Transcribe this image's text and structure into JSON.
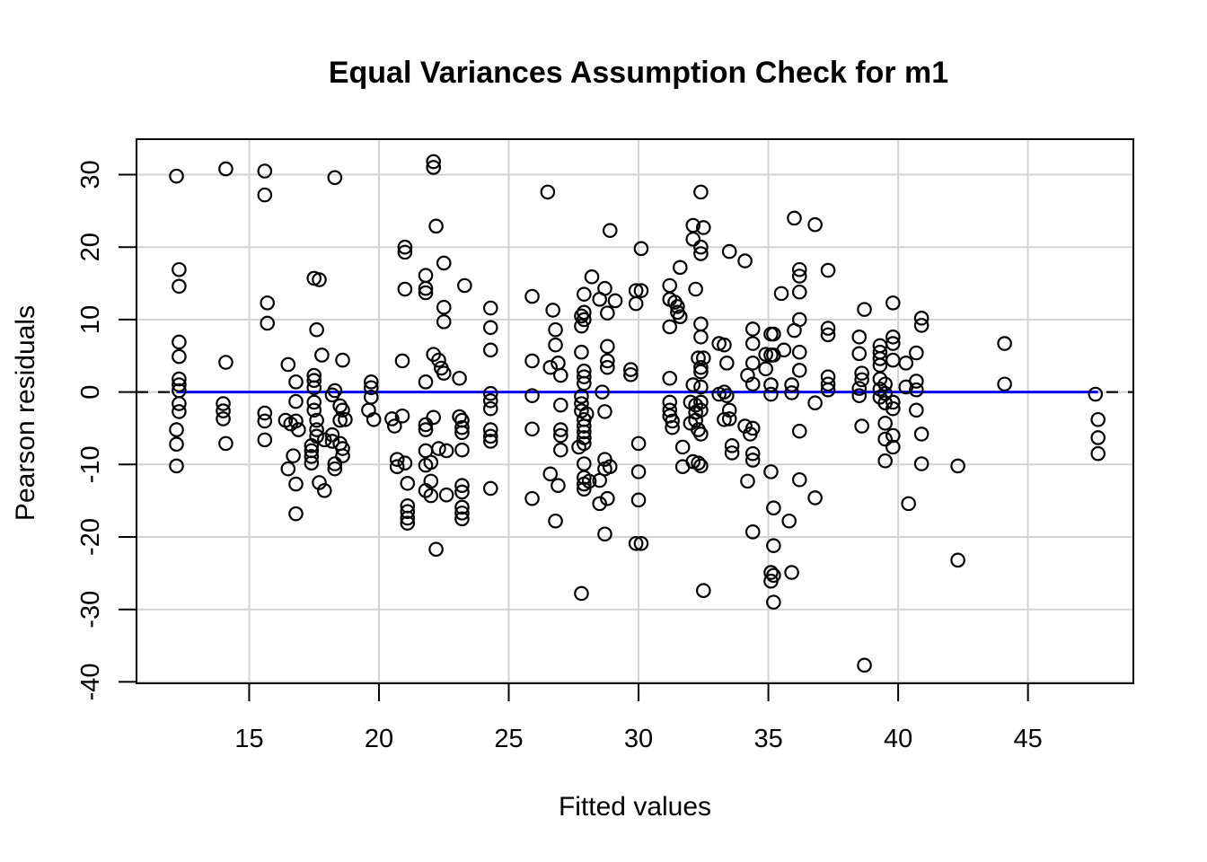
{
  "chart_data": {
    "type": "scatter",
    "title": "Equal Variances Assumption Check for m1",
    "xlabel": "Fitted values",
    "ylabel": "Pearson residuals",
    "x_ticks": [
      15,
      20,
      25,
      30,
      35,
      40,
      45
    ],
    "y_ticks": [
      30,
      20,
      10,
      0,
      -10,
      -20,
      -30,
      -40
    ],
    "xlim": [
      10.66,
      49.06
    ],
    "ylim": [
      -40.2,
      34.9
    ],
    "grid": true,
    "legend": "none",
    "marker": "open-circle",
    "colors": {
      "points": "#000000",
      "smooth_line": "#0000FF",
      "zero_line": "#000000",
      "gridline": "#D3D3D3",
      "axis": "#000000"
    },
    "smooth_line": {
      "y": 0,
      "x_start": 12.2,
      "x_end": 47.7,
      "style": "solid"
    },
    "zero_line": {
      "y": 0,
      "style": "dashed",
      "x_start": 10.66,
      "x_end": 49.06
    },
    "points": [
      [
        12.2,
        29.8
      ],
      [
        14.1,
        30.8
      ],
      [
        15.6,
        30.5
      ],
      [
        15.6,
        27.2
      ],
      [
        18.3,
        29.6
      ],
      [
        12.3,
        16.9
      ],
      [
        12.3,
        14.6
      ],
      [
        17.5,
        15.7
      ],
      [
        17.7,
        15.5
      ],
      [
        15.7,
        12.3
      ],
      [
        15.7,
        9.5
      ],
      [
        17.6,
        8.6
      ],
      [
        12.3,
        6.9
      ],
      [
        12.3,
        4.9
      ],
      [
        14.1,
        4.1
      ],
      [
        17.8,
        5.1
      ],
      [
        18.6,
        4.4
      ],
      [
        16.5,
        3.8
      ],
      [
        12.3,
        1.8
      ],
      [
        12.3,
        1.0
      ],
      [
        12.3,
        0.2
      ],
      [
        16.8,
        1.4
      ],
      [
        16.8,
        -1.3
      ],
      [
        17.5,
        2.3
      ],
      [
        17.5,
        1.6
      ],
      [
        17.5,
        0.6
      ],
      [
        18.3,
        0.2
      ],
      [
        19.7,
        1.4
      ],
      [
        19.7,
        0.6
      ],
      [
        19.7,
        -0.7
      ],
      [
        12.3,
        -1.6
      ],
      [
        12.3,
        -2.7
      ],
      [
        14.0,
        -1.6
      ],
      [
        14.0,
        -2.6
      ],
      [
        14.0,
        -3.7
      ],
      [
        17.5,
        -1.4
      ],
      [
        17.5,
        -2.5
      ],
      [
        18.2,
        -0.4
      ],
      [
        18.5,
        -1.9
      ],
      [
        18.6,
        -2.5
      ],
      [
        15.6,
        -2.9
      ],
      [
        19.6,
        -2.5
      ],
      [
        22.1,
        31.8
      ],
      [
        22.1,
        31.0
      ],
      [
        26.5,
        27.6
      ],
      [
        32.4,
        27.6
      ],
      [
        22.2,
        22.9
      ],
      [
        28.9,
        22.3
      ],
      [
        32.1,
        23.0
      ],
      [
        32.5,
        22.7
      ],
      [
        32.1,
        21.1
      ],
      [
        21.0,
        20.0
      ],
      [
        21.0,
        19.3
      ],
      [
        30.1,
        19.8
      ],
      [
        32.4,
        20.0
      ],
      [
        32.4,
        19.1
      ],
      [
        33.5,
        19.4
      ],
      [
        22.5,
        17.8
      ],
      [
        21.8,
        16.1
      ],
      [
        21.8,
        14.3
      ],
      [
        21.8,
        13.7
      ],
      [
        21.0,
        14.2
      ],
      [
        23.3,
        14.7
      ],
      [
        31.6,
        17.2
      ],
      [
        28.2,
        15.9
      ],
      [
        31.2,
        14.7
      ],
      [
        31.2,
        12.8
      ],
      [
        32.2,
        14.2
      ],
      [
        28.7,
        14.3
      ],
      [
        28.5,
        12.8
      ],
      [
        29.1,
        12.6
      ],
      [
        28.8,
        10.9
      ],
      [
        29.9,
        14.0
      ],
      [
        30.1,
        14.0
      ],
      [
        29.9,
        12.2
      ],
      [
        25.9,
        13.2
      ],
      [
        27.9,
        13.5
      ],
      [
        26.7,
        11.3
      ],
      [
        27.8,
        10.5
      ],
      [
        27.9,
        11.0
      ],
      [
        31.4,
        12.4
      ],
      [
        31.5,
        11.8
      ],
      [
        31.5,
        11.0
      ],
      [
        31.6,
        10.4
      ],
      [
        24.3,
        11.6
      ],
      [
        24.3,
        8.9
      ],
      [
        24.3,
        5.8
      ],
      [
        22.5,
        11.7
      ],
      [
        22.5,
        9.7
      ],
      [
        27.9,
        10.0
      ],
      [
        27.8,
        9.1
      ],
      [
        32.4,
        9.4
      ],
      [
        32.4,
        7.6
      ],
      [
        31.2,
        9.0
      ],
      [
        26.8,
        8.6
      ],
      [
        26.8,
        6.5
      ],
      [
        33.1,
        6.7
      ],
      [
        33.3,
        6.5
      ],
      [
        27.8,
        5.5
      ],
      [
        28.8,
        6.3
      ],
      [
        28.8,
        4.3
      ],
      [
        28.8,
        3.4
      ],
      [
        20.9,
        4.3
      ],
      [
        22.1,
        5.2
      ],
      [
        22.3,
        4.4
      ],
      [
        22.4,
        3.3
      ],
      [
        22.5,
        2.6
      ],
      [
        21.8,
        1.4
      ],
      [
        23.1,
        1.9
      ],
      [
        25.9,
        4.3
      ],
      [
        26.6,
        3.4
      ],
      [
        26.9,
        4.0
      ],
      [
        27.0,
        2.3
      ],
      [
        27.9,
        2.9
      ],
      [
        27.9,
        2.1
      ],
      [
        27.9,
        1.2
      ],
      [
        29.7,
        3.1
      ],
      [
        29.7,
        2.4
      ],
      [
        31.2,
        1.9
      ],
      [
        32.3,
        4.7
      ],
      [
        32.5,
        4.7
      ],
      [
        32.4,
        3.4
      ],
      [
        32.4,
        2.8
      ],
      [
        33.4,
        4.0
      ],
      [
        32.1,
        1.0
      ],
      [
        32.4,
        0.7
      ],
      [
        33.3,
        0.0
      ],
      [
        24.3,
        -0.2
      ],
      [
        24.3,
        -1.2
      ],
      [
        24.3,
        -2.3
      ],
      [
        25.9,
        -0.5
      ],
      [
        27.0,
        -1.8
      ],
      [
        27.8,
        -0.6
      ],
      [
        27.8,
        -1.6
      ],
      [
        27.8,
        -2.6
      ],
      [
        28.0,
        -3.0
      ],
      [
        28.7,
        -2.7
      ],
      [
        28.6,
        0.0
      ],
      [
        31.2,
        -1.4
      ],
      [
        31.2,
        -2.5
      ],
      [
        31.2,
        -3.3
      ],
      [
        32.0,
        -1.4
      ],
      [
        32.2,
        -1.8
      ],
      [
        32.4,
        -1.4
      ],
      [
        32.2,
        -2.8
      ],
      [
        32.4,
        -2.5
      ],
      [
        33.1,
        -0.3
      ],
      [
        33.4,
        -0.5
      ],
      [
        20.9,
        -3.3
      ],
      [
        22.1,
        -3.5
      ],
      [
        23.1,
        -3.4
      ],
      [
        36.0,
        24.0
      ],
      [
        36.8,
        23.1
      ],
      [
        34.1,
        18.1
      ],
      [
        36.2,
        16.9
      ],
      [
        36.2,
        16.0
      ],
      [
        37.3,
        16.8
      ],
      [
        35.5,
        13.6
      ],
      [
        36.2,
        13.8
      ],
      [
        36.2,
        10.0
      ],
      [
        36.2,
        5.5
      ],
      [
        36.2,
        3.0
      ],
      [
        36.0,
        8.5
      ],
      [
        38.7,
        11.4
      ],
      [
        39.8,
        12.3
      ],
      [
        40.9,
        10.2
      ],
      [
        40.9,
        9.2
      ],
      [
        34.4,
        8.7
      ],
      [
        34.4,
        6.7
      ],
      [
        35.1,
        8.0
      ],
      [
        35.2,
        8.0
      ],
      [
        37.3,
        8.8
      ],
      [
        37.3,
        7.9
      ],
      [
        34.9,
        5.2
      ],
      [
        35.1,
        5.1
      ],
      [
        35.2,
        5.1
      ],
      [
        35.6,
        5.8
      ],
      [
        34.4,
        4.0
      ],
      [
        34.9,
        3.2
      ],
      [
        38.5,
        7.6
      ],
      [
        38.5,
        5.3
      ],
      [
        39.3,
        6.4
      ],
      [
        39.3,
        5.5
      ],
      [
        39.3,
        4.6
      ],
      [
        39.3,
        3.7
      ],
      [
        39.8,
        7.6
      ],
      [
        39.8,
        6.7
      ],
      [
        39.8,
        4.4
      ],
      [
        40.3,
        4.0
      ],
      [
        40.7,
        5.4
      ],
      [
        44.1,
        6.7
      ],
      [
        38.6,
        2.6
      ],
      [
        38.6,
        1.7
      ],
      [
        37.3,
        2.1
      ],
      [
        37.3,
        1.1
      ],
      [
        37.3,
        0.3
      ],
      [
        34.2,
        2.3
      ],
      [
        34.4,
        1.1
      ],
      [
        35.1,
        1.0
      ],
      [
        35.1,
        -0.3
      ],
      [
        35.9,
        1.0
      ],
      [
        35.9,
        -0.1
      ],
      [
        36.8,
        -1.5
      ],
      [
        38.5,
        0.5
      ],
      [
        38.5,
        -0.5
      ],
      [
        39.3,
        1.8
      ],
      [
        39.5,
        1.1
      ],
      [
        39.3,
        0.4
      ],
      [
        39.5,
        -0.2
      ],
      [
        39.3,
        -0.7
      ],
      [
        39.5,
        -1.5
      ],
      [
        40.3,
        0.7
      ],
      [
        40.7,
        1.5
      ],
      [
        40.7,
        0.3
      ],
      [
        44.1,
        1.1
      ],
      [
        47.6,
        -0.3
      ],
      [
        33.5,
        -2.5
      ],
      [
        39.8,
        -1.4
      ],
      [
        39.8,
        -2.3
      ],
      [
        40.7,
        -2.5
      ],
      [
        12.2,
        -5.2
      ],
      [
        12.2,
        -7.2
      ],
      [
        12.2,
        -10.2
      ],
      [
        14.1,
        -7.1
      ],
      [
        15.6,
        -4.0
      ],
      [
        15.6,
        -6.6
      ],
      [
        16.4,
        -3.9
      ],
      [
        16.6,
        -4.4
      ],
      [
        16.8,
        -4.0
      ],
      [
        16.9,
        -5.2
      ],
      [
        16.7,
        -8.8
      ],
      [
        16.5,
        -10.6
      ],
      [
        16.8,
        -12.7
      ],
      [
        16.8,
        -16.8
      ],
      [
        17.4,
        -7.4
      ],
      [
        17.4,
        -8.1
      ],
      [
        17.4,
        -8.9
      ],
      [
        17.4,
        -9.8
      ],
      [
        17.6,
        -3.9
      ],
      [
        17.6,
        -5.2
      ],
      [
        17.6,
        -6.1
      ],
      [
        17.9,
        -6.6
      ],
      [
        18.2,
        -6.8
      ],
      [
        17.7,
        -12.5
      ],
      [
        17.9,
        -13.6
      ],
      [
        18.2,
        -5.9
      ],
      [
        18.5,
        -7.1
      ],
      [
        18.5,
        -3.9
      ],
      [
        18.7,
        -3.8
      ],
      [
        18.6,
        -7.8
      ],
      [
        18.6,
        -8.8
      ],
      [
        18.3,
        -9.9
      ],
      [
        18.3,
        -10.6
      ],
      [
        19.8,
        -3.8
      ],
      [
        20.6,
        -4.7
      ],
      [
        20.5,
        -3.7
      ],
      [
        20.7,
        -9.3
      ],
      [
        21.0,
        -9.8
      ],
      [
        20.7,
        -10.3
      ],
      [
        21.1,
        -12.6
      ],
      [
        21.1,
        -15.7
      ],
      [
        21.1,
        -16.5
      ],
      [
        21.1,
        -17.4
      ],
      [
        21.1,
        -18.1
      ],
      [
        21.8,
        -8.1
      ],
      [
        21.8,
        -10.1
      ],
      [
        22.0,
        -9.7
      ],
      [
        21.8,
        -13.6
      ],
      [
        22.0,
        -14.3
      ],
      [
        21.8,
        -4.5
      ],
      [
        21.8,
        -5.2
      ],
      [
        23.2,
        -3.9
      ],
      [
        23.2,
        -4.9
      ],
      [
        23.2,
        -5.6
      ],
      [
        22.3,
        -7.8
      ],
      [
        22.6,
        -8.1
      ],
      [
        23.2,
        -8.0
      ],
      [
        22.0,
        -12.3
      ],
      [
        23.2,
        -12.9
      ],
      [
        23.2,
        -13.8
      ],
      [
        22.6,
        -14.2
      ],
      [
        23.2,
        -15.9
      ],
      [
        23.2,
        -16.7
      ],
      [
        23.2,
        -17.5
      ],
      [
        22.2,
        -21.7
      ],
      [
        24.3,
        -5.2
      ],
      [
        24.3,
        -6.1
      ],
      [
        24.3,
        -6.8
      ],
      [
        25.9,
        -5.1
      ],
      [
        27.0,
        -5.2
      ],
      [
        27.0,
        -6.0
      ],
      [
        27.0,
        -8.0
      ],
      [
        27.9,
        -3.8
      ],
      [
        27.9,
        -4.7
      ],
      [
        27.9,
        -5.5
      ],
      [
        27.9,
        -6.3
      ],
      [
        27.9,
        -7.1
      ],
      [
        27.7,
        -7.6
      ],
      [
        28.7,
        -9.3
      ],
      [
        28.9,
        -10.3
      ],
      [
        28.7,
        -10.6
      ],
      [
        28.5,
        -12.2
      ],
      [
        27.9,
        -9.9
      ],
      [
        27.9,
        -11.8
      ],
      [
        27.9,
        -12.7
      ],
      [
        27.9,
        -13.4
      ],
      [
        28.1,
        -12.3
      ],
      [
        26.6,
        -11.3
      ],
      [
        26.9,
        -12.9
      ],
      [
        25.9,
        -14.7
      ],
      [
        26.8,
        -17.8
      ],
      [
        24.3,
        -13.3
      ],
      [
        28.5,
        -15.4
      ],
      [
        28.8,
        -14.7
      ],
      [
        28.7,
        -19.6
      ],
      [
        30.0,
        -7.1
      ],
      [
        30.0,
        -11.0
      ],
      [
        30.0,
        -14.9
      ],
      [
        29.9,
        -20.9
      ],
      [
        30.1,
        -20.9
      ],
      [
        31.3,
        -4.0
      ],
      [
        31.3,
        -4.9
      ],
      [
        31.7,
        -7.6
      ],
      [
        32.0,
        -4.3
      ],
      [
        32.2,
        -3.9
      ],
      [
        32.3,
        -5.2
      ],
      [
        32.4,
        -5.8
      ],
      [
        32.1,
        -9.6
      ],
      [
        32.3,
        -9.8
      ],
      [
        32.4,
        -10.2
      ],
      [
        31.7,
        -10.3
      ],
      [
        32.5,
        -27.4
      ],
      [
        27.8,
        -27.8
      ],
      [
        33.3,
        -3.8
      ],
      [
        33.5,
        -3.7
      ],
      [
        33.6,
        -7.4
      ],
      [
        33.6,
        -8.4
      ],
      [
        34.1,
        -4.7
      ],
      [
        34.4,
        -5.0
      ],
      [
        34.3,
        -5.8
      ],
      [
        34.4,
        -8.5
      ],
      [
        34.4,
        -9.4
      ],
      [
        34.2,
        -12.3
      ],
      [
        34.4,
        -19.3
      ],
      [
        35.1,
        -11.0
      ],
      [
        35.2,
        -16.0
      ],
      [
        35.2,
        -21.2
      ],
      [
        35.1,
        -24.9
      ],
      [
        35.2,
        -25.3
      ],
      [
        35.1,
        -26.1
      ],
      [
        35.9,
        -24.9
      ],
      [
        35.2,
        -29.0
      ],
      [
        36.2,
        -5.4
      ],
      [
        36.2,
        -12.1
      ],
      [
        36.8,
        -14.6
      ],
      [
        38.6,
        -4.7
      ],
      [
        39.5,
        -4.3
      ],
      [
        39.5,
        -6.5
      ],
      [
        39.8,
        -6.0
      ],
      [
        39.8,
        -7.6
      ],
      [
        39.5,
        -9.5
      ],
      [
        40.9,
        -5.8
      ],
      [
        40.9,
        -9.9
      ],
      [
        42.3,
        -10.2
      ],
      [
        40.4,
        -15.4
      ],
      [
        35.8,
        -17.8
      ],
      [
        42.3,
        -23.2
      ],
      [
        38.7,
        -37.7
      ],
      [
        47.7,
        -3.8
      ],
      [
        47.7,
        -6.3
      ],
      [
        47.7,
        -8.5
      ]
    ]
  }
}
